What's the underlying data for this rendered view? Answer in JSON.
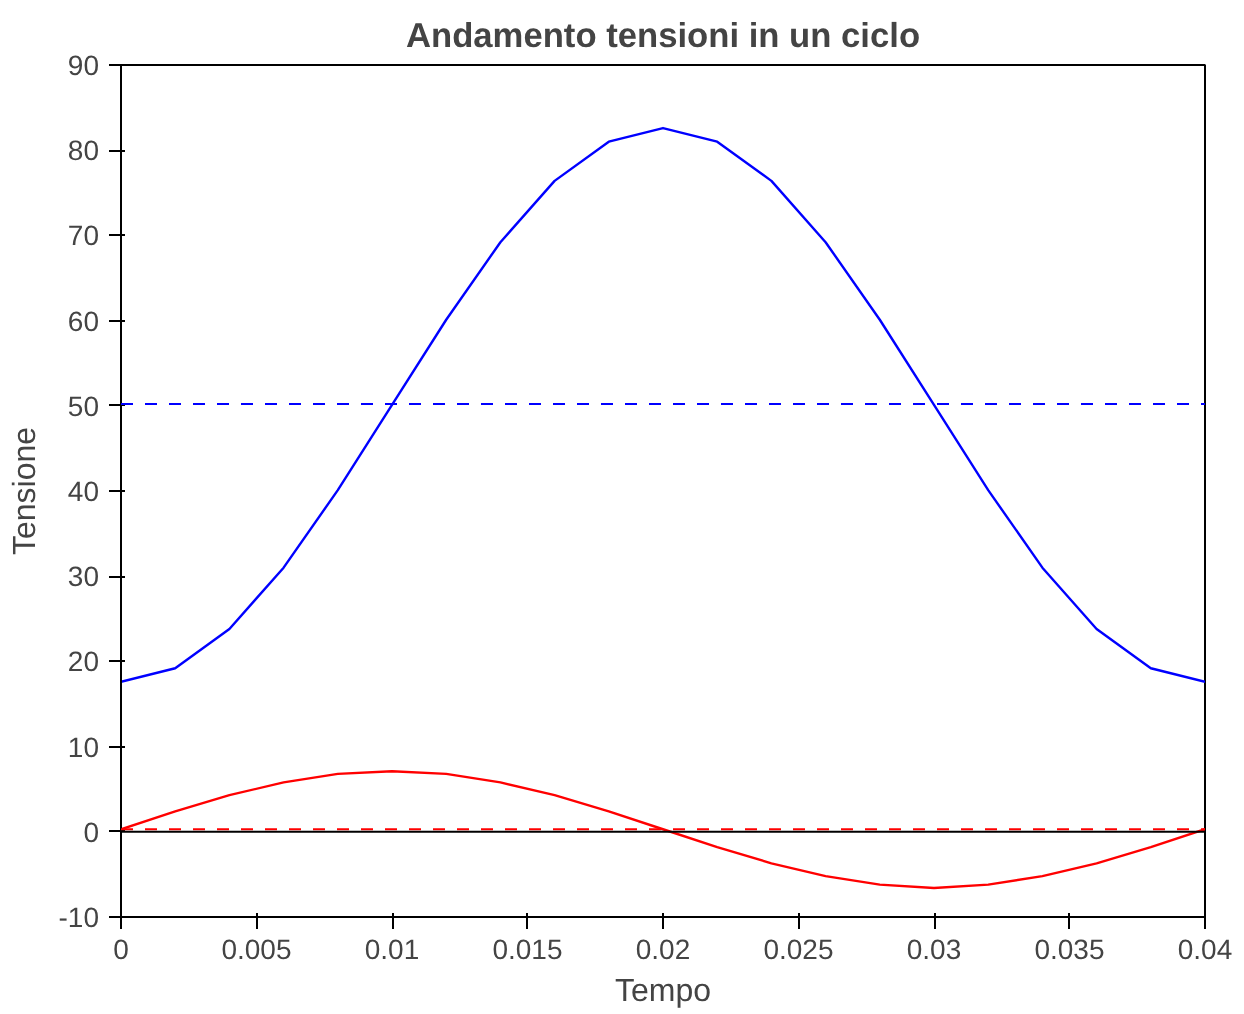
{
  "chart_data": {
    "type": "line",
    "title": "Andamento tensioni in un ciclo",
    "xlabel": "Tempo",
    "ylabel": "Tensione",
    "x": [
      0,
      0.002,
      0.004,
      0.006,
      0.008,
      0.01,
      0.012,
      0.014,
      0.016,
      0.018,
      0.02,
      0.022,
      0.024,
      0.026,
      0.028,
      0.03,
      0.032,
      0.034,
      0.036,
      0.038,
      0.04
    ],
    "series": [
      {
        "color": "#0000ff",
        "values": [
          17.6,
          19.2,
          23.8,
          31.0,
          40.1,
          50.1,
          60.1,
          69.2,
          76.4,
          81.0,
          82.6,
          81.0,
          76.4,
          69.2,
          60.1,
          50.1,
          40.1,
          31.0,
          23.8,
          19.2,
          17.6
        ]
      },
      {
        "color": "#ff0000",
        "values": [
          0.3,
          2.4,
          4.3,
          5.8,
          6.8,
          7.1,
          6.8,
          5.8,
          4.3,
          2.4,
          0.3,
          -1.8,
          -3.7,
          -5.2,
          -6.2,
          -6.6,
          -6.2,
          -5.2,
          -3.7,
          -1.8,
          0.3
        ]
      }
    ],
    "ref_lines": [
      {
        "axis": "y",
        "value": 50.2,
        "color": "#0000ff",
        "line_style": "dashed"
      },
      {
        "axis": "y",
        "value": 0.3,
        "color": "#ff0000",
        "line_style": "dashed"
      },
      {
        "axis": "y",
        "value": 0,
        "color": "#000000",
        "line_style": "solid"
      }
    ],
    "xlim": [
      0,
      0.04
    ],
    "xticks": [
      0,
      0.005,
      0.01,
      0.015,
      0.02,
      0.025,
      0.03,
      0.035,
      0.04
    ],
    "ylim": [
      -10,
      90
    ],
    "yticks": [
      -10,
      0,
      10,
      20,
      30,
      40,
      50,
      60,
      70,
      80,
      90
    ],
    "grid": false,
    "line_style": "solid",
    "marker": "none"
  }
}
